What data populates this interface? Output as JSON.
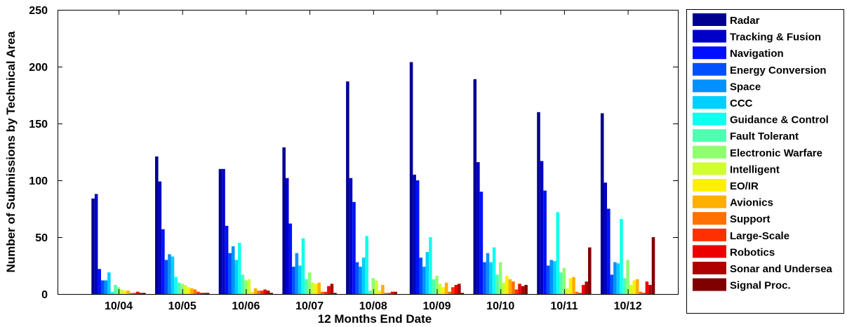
{
  "chart_data": {
    "type": "bar",
    "title": "",
    "xlabel": "12 Months End Date",
    "ylabel": "Number of Submissions by Technical Area",
    "ylim": [
      0,
      250
    ],
    "yticks": [
      0,
      50,
      100,
      150,
      200,
      250
    ],
    "grid": false,
    "legend_position": "right (outside)",
    "categories": [
      "10/04",
      "10/05",
      "10/06",
      "10/07",
      "10/08",
      "10/09",
      "10/10",
      "10/11",
      "10/12"
    ],
    "series": [
      {
        "name": "Radar",
        "color": "#00008F",
        "values": [
          84,
          121,
          110,
          129,
          187,
          204,
          189,
          160,
          159
        ]
      },
      {
        "name": "Tracking & Fusion",
        "color": "#0000C8",
        "values": [
          88,
          99,
          110,
          102,
          102,
          105,
          116,
          117,
          98
        ]
      },
      {
        "name": "Navigation",
        "color": "#0010FF",
        "values": [
          22,
          57,
          60,
          62,
          81,
          100,
          90,
          91,
          75
        ]
      },
      {
        "name": "Energy Conversion",
        "color": "#0050FF",
        "values": [
          12,
          30,
          36,
          24,
          28,
          32,
          28,
          25,
          17
        ]
      },
      {
        "name": "Space",
        "color": "#0090FF",
        "values": [
          12,
          35,
          42,
          36,
          24,
          24,
          36,
          30,
          28
        ]
      },
      {
        "name": "CCC",
        "color": "#00CFFF",
        "values": [
          19,
          33,
          30,
          25,
          32,
          37,
          28,
          29,
          27
        ]
      },
      {
        "name": "Guidance & Control",
        "color": "#10FFEF",
        "values": [
          2,
          15,
          45,
          49,
          51,
          50,
          41,
          72,
          66
        ]
      },
      {
        "name": "Fault Tolerant",
        "color": "#50FFAF",
        "values": [
          8,
          10,
          17,
          13,
          3,
          13,
          17,
          19,
          14
        ]
      },
      {
        "name": "Electronic Warfare",
        "color": "#8FFF70",
        "values": [
          6,
          9,
          12,
          19,
          14,
          16,
          28,
          23,
          30
        ]
      },
      {
        "name": "Intelligent",
        "color": "#CFFF30",
        "values": [
          4,
          8,
          13,
          10,
          12,
          9,
          10,
          5,
          8
        ]
      },
      {
        "name": "EO/IR",
        "color": "#FFEF00",
        "values": [
          3,
          6,
          2,
          9,
          3,
          6,
          16,
          14,
          12
        ]
      },
      {
        "name": "Avionics",
        "color": "#FFAF00",
        "values": [
          3,
          5,
          5,
          10,
          8,
          10,
          13,
          15,
          13
        ]
      },
      {
        "name": "Support",
        "color": "#FF7000",
        "values": [
          1,
          4,
          3,
          2,
          1,
          2,
          11,
          2,
          2
        ]
      },
      {
        "name": "Large-Scale",
        "color": "#FF3000",
        "values": [
          1,
          2,
          3,
          2,
          1,
          6,
          4,
          1,
          1
        ]
      },
      {
        "name": "Robotics",
        "color": "#EF0000",
        "values": [
          2,
          1,
          4,
          7,
          2,
          8,
          9,
          8,
          11
        ]
      },
      {
        "name": "Sonar and Undersea",
        "color": "#AF0000",
        "values": [
          1,
          1,
          3,
          9,
          2,
          9,
          7,
          11,
          8
        ]
      },
      {
        "name": "Signal Proc.",
        "color": "#800000",
        "values": [
          1,
          1,
          1,
          1,
          0,
          1,
          8,
          41,
          50
        ]
      }
    ]
  }
}
